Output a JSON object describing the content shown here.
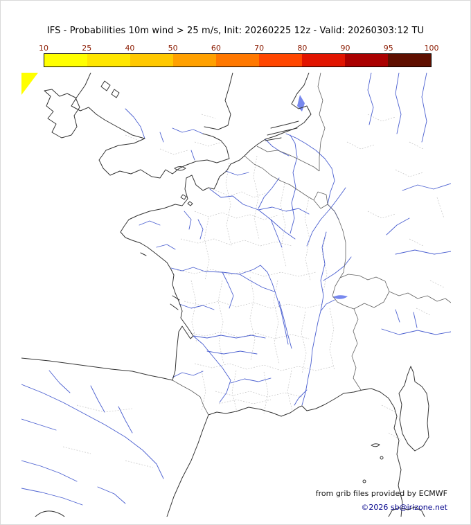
{
  "title": "IFS - Probabilities 10m wind > 25 m/s, Init: 20260225 12z - Valid: 20260303:12 TU",
  "colorbar": {
    "ticks": [
      "10",
      "25",
      "40",
      "50",
      "60",
      "70",
      "80",
      "90",
      "95",
      "100"
    ],
    "colors": [
      "#ffff00",
      "#ffe600",
      "#ffc800",
      "#ffa000",
      "#ff7800",
      "#ff4600",
      "#e11400",
      "#aa0000",
      "#5f0f00"
    ],
    "tick_color": "#8b1a00"
  },
  "map": {
    "probability_patch_color": "#ffff00",
    "probability_patch_edge": "#e8c800",
    "coast_color": "#333333",
    "border_color": "#606060",
    "department_color": "#c4c4c4",
    "river_color": "#4a5fd0"
  },
  "credits": {
    "source": "from grib files provided by ECMWF",
    "copyright": "©2026 sb@irizone.net"
  }
}
